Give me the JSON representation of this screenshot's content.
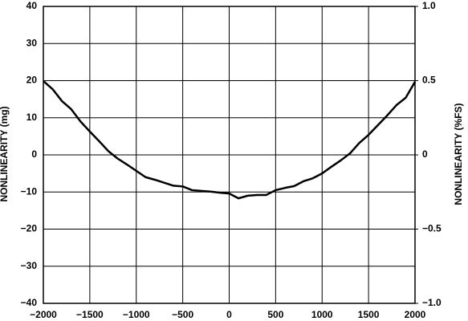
{
  "chart_data": {
    "type": "line",
    "ylabel": "NONLINEARITY (mg)",
    "y2label": "NONLINEARITY (%FS)",
    "x": [
      -2000,
      -1900,
      -1800,
      -1700,
      -1600,
      -1500,
      -1400,
      -1300,
      -1200,
      -1100,
      -1000,
      -900,
      -800,
      -700,
      -600,
      -500,
      -400,
      -300,
      -200,
      -100,
      0,
      100,
      200,
      300,
      400,
      500,
      600,
      700,
      800,
      900,
      1000,
      1100,
      1200,
      1300,
      1400,
      1500,
      1600,
      1700,
      1800,
      1900,
      2000
    ],
    "series": [
      {
        "color": "#000000",
        "values": [
          19.9,
          17.7,
          14.5,
          12.3,
          9,
          6.3,
          3.7,
          1,
          -1,
          -2.6,
          -4.3,
          -6,
          -6.7,
          -7.5,
          -8.3,
          -8.5,
          -9.5,
          -9.7,
          -9.9,
          -10.2,
          -10.4,
          -11.7,
          -11,
          -10.8,
          -10.8,
          -9.5,
          -8.9,
          -8.4,
          -7.1,
          -6.3,
          -5,
          -3.2,
          -1.5,
          0.4,
          3.2,
          5.4,
          8,
          10.6,
          13.4,
          15.4,
          19.7
        ]
      }
    ],
    "xlim": [
      -2000,
      2000
    ],
    "xticks": [
      {
        "value": -2000,
        "label": "−2000"
      },
      {
        "value": -1500,
        "label": "−1500"
      },
      {
        "value": -1000,
        "label": "−1000"
      },
      {
        "value": -500,
        "label": "−500"
      },
      0,
      500,
      1000,
      1500,
      2000
    ],
    "ylim": [
      -40,
      40
    ],
    "yticks": [
      {
        "value": -40,
        "label": "−40"
      },
      {
        "value": -30,
        "label": "−30"
      },
      {
        "value": -20,
        "label": "−20"
      },
      {
        "value": -10,
        "label": "−10"
      },
      0,
      10,
      20,
      30,
      40
    ],
    "y2lim": [
      -1,
      1
    ],
    "y2ticks": [
      {
        "value": -1,
        "label": "−1.0"
      },
      {
        "value": -0.5,
        "label": "−0.5"
      },
      0,
      0.5,
      {
        "value": 1,
        "label": "1.0"
      }
    ],
    "grid": true
  }
}
